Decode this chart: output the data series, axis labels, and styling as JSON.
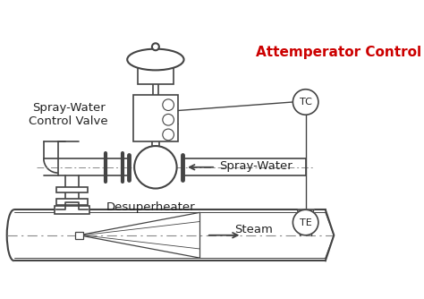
{
  "title": "Attemperator Control",
  "title_color": "#cc0000",
  "bg_color": "#ffffff",
  "line_color": "#444444",
  "label_color": "#222222",
  "labels": {
    "spray_water_control_valve": "Spray-Water\nControl Valve",
    "spray_water": "Spray-Water",
    "desuperheater": "Desuperheater",
    "steam": "Steam"
  },
  "figsize": [
    4.74,
    3.34
  ],
  "dpi": 100
}
